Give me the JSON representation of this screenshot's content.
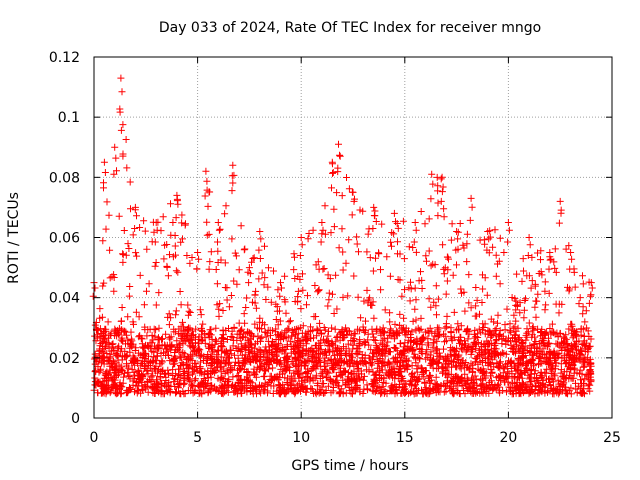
{
  "chart_data": {
    "type": "scatter",
    "title": "Day 033 of 2024, Rate Of TEC Index for receiver mngo",
    "xlabel": "GPS time / hours",
    "ylabel": "ROTI / TECUs",
    "xlim": [
      0,
      25
    ],
    "ylim": [
      0,
      0.12
    ],
    "xticks": [
      0,
      5,
      10,
      15,
      20,
      25
    ],
    "xtick_labels": [
      "0",
      "5",
      "10",
      "15",
      "20",
      "25"
    ],
    "yticks": [
      0,
      0.02,
      0.04,
      0.06,
      0.08,
      0.1,
      0.12
    ],
    "ytick_labels": [
      "0",
      "0.02",
      "0.04",
      "0.06",
      "0.08",
      "0.1",
      "0.12"
    ],
    "grid": true,
    "marker": "plus",
    "series": [
      {
        "name": "ROTI",
        "color": "#ff0000",
        "x_range": [
          0,
          24
        ],
        "typical_band": [
          0.008,
          0.03
        ],
        "envelope": [
          {
            "x": 0.0,
            "y": 0.045
          },
          {
            "x": 0.5,
            "y": 0.085
          },
          {
            "x": 1.0,
            "y": 0.09
          },
          {
            "x": 1.3,
            "y": 0.113
          },
          {
            "x": 2.0,
            "y": 0.07
          },
          {
            "x": 3.0,
            "y": 0.065
          },
          {
            "x": 4.0,
            "y": 0.074
          },
          {
            "x": 5.0,
            "y": 0.055
          },
          {
            "x": 5.4,
            "y": 0.082
          },
          {
            "x": 6.0,
            "y": 0.065
          },
          {
            "x": 6.7,
            "y": 0.084
          },
          {
            "x": 7.5,
            "y": 0.05
          },
          {
            "x": 8.0,
            "y": 0.062
          },
          {
            "x": 9.0,
            "y": 0.045
          },
          {
            "x": 10.0,
            "y": 0.06
          },
          {
            "x": 11.0,
            "y": 0.065
          },
          {
            "x": 11.5,
            "y": 0.085
          },
          {
            "x": 11.8,
            "y": 0.091
          },
          {
            "x": 12.5,
            "y": 0.075
          },
          {
            "x": 13.5,
            "y": 0.07
          },
          {
            "x": 14.5,
            "y": 0.068
          },
          {
            "x": 15.5,
            "y": 0.065
          },
          {
            "x": 16.3,
            "y": 0.081
          },
          {
            "x": 16.8,
            "y": 0.08
          },
          {
            "x": 17.5,
            "y": 0.062
          },
          {
            "x": 18.2,
            "y": 0.073
          },
          {
            "x": 19.0,
            "y": 0.062
          },
          {
            "x": 20.0,
            "y": 0.065
          },
          {
            "x": 21.0,
            "y": 0.06
          },
          {
            "x": 22.0,
            "y": 0.055
          },
          {
            "x": 22.5,
            "y": 0.072
          },
          {
            "x": 23.0,
            "y": 0.055
          },
          {
            "x": 24.0,
            "y": 0.045
          }
        ]
      }
    ]
  }
}
